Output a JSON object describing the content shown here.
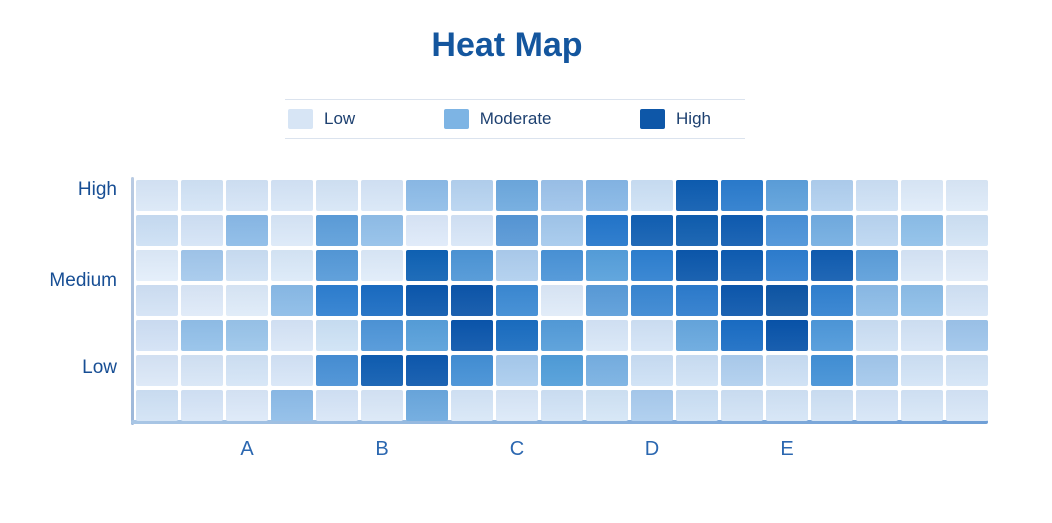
{
  "page": {
    "background": "#ffffff"
  },
  "title": {
    "text": "Heat Map",
    "color": "#14569e"
  },
  "legend": {
    "items": [
      {
        "label": "Low",
        "color": "#d7e5f5"
      },
      {
        "label": "Moderate",
        "color": "#7db4e4"
      },
      {
        "label": "High",
        "color": "#0e57a8"
      }
    ],
    "text_color": "#1d4070",
    "divider_color": "#dbe3ee"
  },
  "axes": {
    "y_axis_color": "#a3bbd9",
    "x_axis_color": "#7aaadc",
    "y_label_color": "#174e94",
    "x_label_color": "#2b67b0"
  },
  "chart_data": {
    "type": "heatmap",
    "title": "Heat Map",
    "rows": 7,
    "columns": 19,
    "x_tick_labels": [
      "A",
      "B",
      "C",
      "D",
      "E"
    ],
    "x_tick_col_indices": [
      2,
      5,
      8,
      11,
      14
    ],
    "y_tick_labels": [
      "High",
      "Medium",
      "Low"
    ],
    "legend_entries": [
      "Low",
      "Moderate",
      "High"
    ],
    "legend_position": "top-center",
    "grid": "gapped white grid lines between cells",
    "intensity_scale": "0=low(lightest blue), 1=light-moderate, 2=moderate/strong blue, 3=high(dark navy)",
    "intensity": [
      [
        0,
        0,
        0,
        0,
        0,
        0,
        1,
        0,
        1,
        1,
        1,
        0,
        3,
        2,
        1,
        0,
        0,
        0,
        0
      ],
      [
        0,
        0,
        1,
        0,
        1,
        1,
        0,
        0,
        1,
        1,
        2,
        3,
        3,
        3,
        2,
        1,
        0,
        1,
        0
      ],
      [
        0,
        1,
        0,
        0,
        1,
        0,
        3,
        2,
        0,
        2,
        1,
        2,
        3,
        3,
        2,
        3,
        1,
        0,
        0
      ],
      [
        0,
        0,
        0,
        1,
        2,
        3,
        3,
        3,
        2,
        0,
        1,
        2,
        2,
        3,
        3,
        2,
        1,
        1,
        0
      ],
      [
        0,
        1,
        1,
        0,
        0,
        2,
        1,
        3,
        3,
        1,
        0,
        0,
        1,
        3,
        3,
        2,
        0,
        0,
        1
      ],
      [
        0,
        0,
        0,
        0,
        2,
        3,
        3,
        2,
        0,
        1,
        1,
        0,
        0,
        0,
        0,
        2,
        1,
        0,
        0
      ],
      [
        0,
        0,
        0,
        1,
        0,
        0,
        1,
        0,
        0,
        0,
        0,
        0,
        0,
        0,
        0,
        0,
        0,
        0,
        0
      ]
    ],
    "cell_colors": [
      [
        "#dbe8f7",
        "#d5e5f6",
        "#d6e5f6",
        "#d9e7f7",
        "#d7e6f6",
        "#d9e7f7",
        "#8fbde8",
        "#b8d4f0",
        "#6faade",
        "#9fc4ea",
        "#88b8e6",
        "#cfe2f5",
        "#0d5cb0",
        "#2b7ccd",
        "#5ea1db",
        "#b3d1ef",
        "#d0e2f5",
        "#e0ecf9",
        "#dfebf8"
      ],
      [
        "#cde0f4",
        "#d5e4f6",
        "#8cbbe7",
        "#dce9f8",
        "#5e9fda",
        "#93c0e9",
        "#dfeaf9",
        "#d8e6f7",
        "#5898d6",
        "#a5c9ec",
        "#2376cb",
        "#115fb2",
        "#0f5dae",
        "#0e5bb0",
        "#4a92d8",
        "#74aee1",
        "#bdd7f1",
        "#8fc0e9",
        "#d3e4f5"
      ],
      [
        "#e3eefa",
        "#a5c9ec",
        "#cfe1f4",
        "#dceaf8",
        "#569ad8",
        "#e0ecf9",
        "#0f62b4",
        "#4e96d6",
        "#b0cfee",
        "#4b94d7",
        "#57a0db",
        "#2e80d0",
        "#0b57ab",
        "#0e5cb1",
        "#2e7ecf",
        "#105cb0",
        "#5d9fda",
        "#dbe8f7",
        "#e0ebf8"
      ],
      [
        "#d4e3f5",
        "#dfeaf8",
        "#dfebf8",
        "#8cbce7",
        "#2e7fd0",
        "#1a6cc2",
        "#0b57ac",
        "#0c55a9",
        "#3c8ad3",
        "#e0ebf8",
        "#5b9dd9",
        "#3a87d2",
        "#2d7ccd",
        "#0c57ac",
        "#0d55a4",
        "#3181d0",
        "#8ebde7",
        "#8fbfe8",
        "#d6e5f6"
      ],
      [
        "#d3e2f5",
        "#94c1e9",
        "#9cc6ea",
        "#dae7f7",
        "#cfe3f5",
        "#4f96d8",
        "#58a0da",
        "#0a55ab",
        "#1a6dc0",
        "#559dd9",
        "#d9e7f7",
        "#d4e4f6",
        "#68a8de",
        "#1a6dc4",
        "#0853a9",
        "#4f99da",
        "#cfe1f4",
        "#d6e5f6",
        "#a0c6eb"
      ],
      [
        "#dce8f7",
        "#d8e6f6",
        "#d5e5f6",
        "#d8e6f7",
        "#4890d5",
        "#0f5db1",
        "#0d58ad",
        "#4490d5",
        "#abcdee",
        "#519ed9",
        "#79b1e2",
        "#cee1f5",
        "#d0e2f5",
        "#b0cfee",
        "#cde0f4",
        "#4391d6",
        "#a5c9ec",
        "#d3e4f6",
        "#d5e5f6"
      ],
      [
        "#d2e3f5",
        "#d8e6f7",
        "#dde9f8",
        "#8fbde8",
        "#d8e6f7",
        "#dbe8f7",
        "#6ca9de",
        "#d8e7f7",
        "#dce9f8",
        "#d3e4f6",
        "#d5e6f6",
        "#accdee",
        "#cfe2f5",
        "#d2e3f5",
        "#d5e5f6",
        "#d2e3f5",
        "#d7e6f7",
        "#d8e7f7",
        "#d9e7f7"
      ]
    ]
  }
}
